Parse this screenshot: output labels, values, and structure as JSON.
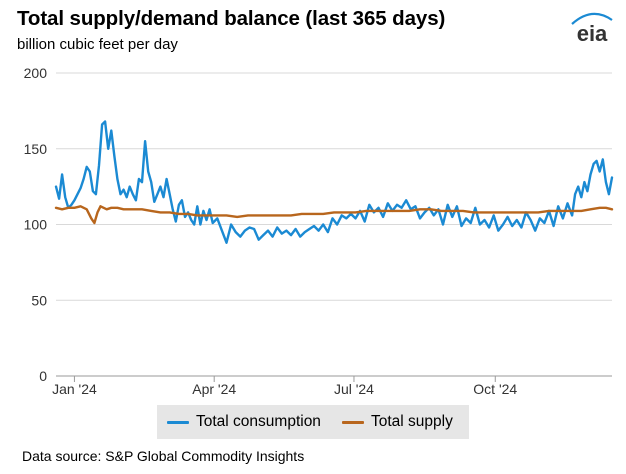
{
  "header": {
    "title": "Total supply/demand balance (last 365 days)",
    "subtitle": "billion cubic feet per day",
    "logo_text": "eia"
  },
  "colors": {
    "consumption": "#1b8ad3",
    "supply": "#b8661d",
    "gridline": "#d9d9d9",
    "legend_bg": "#e6e6e6",
    "logo_arc": "#1b8ad3"
  },
  "chart_data": {
    "type": "line",
    "title": "Total supply/demand balance (last 365 days)",
    "ylabel": "billion cubic feet per day",
    "ylim": [
      0,
      200
    ],
    "yticks": [
      0,
      50,
      100,
      150,
      200
    ],
    "xlim": [
      "2023-12-20",
      "2024-12-16"
    ],
    "xticks": [
      {
        "date": "2024-01-01",
        "label": "Jan '24"
      },
      {
        "date": "2024-04-01",
        "label": "Apr '24"
      },
      {
        "date": "2024-07-01",
        "label": "Jul '24"
      },
      {
        "date": "2024-10-01",
        "label": "Oct '24"
      }
    ],
    "grid": "horizontal",
    "legend": "bottom-center",
    "series": [
      {
        "name": "Total consumption",
        "x": [
          "2023-12-20",
          "2023-12-22",
          "2023-12-24",
          "2023-12-26",
          "2023-12-28",
          "2023-12-30",
          "2024-01-01",
          "2024-01-03",
          "2024-01-05",
          "2024-01-07",
          "2024-01-09",
          "2024-01-11",
          "2024-01-13",
          "2024-01-15",
          "2024-01-17",
          "2024-01-19",
          "2024-01-21",
          "2024-01-23",
          "2024-01-25",
          "2024-01-27",
          "2024-01-29",
          "2024-01-31",
          "2024-02-02",
          "2024-02-04",
          "2024-02-06",
          "2024-02-08",
          "2024-02-10",
          "2024-02-12",
          "2024-02-14",
          "2024-02-16",
          "2024-02-18",
          "2024-02-20",
          "2024-02-22",
          "2024-02-24",
          "2024-02-26",
          "2024-02-28",
          "2024-03-01",
          "2024-03-03",
          "2024-03-05",
          "2024-03-07",
          "2024-03-09",
          "2024-03-11",
          "2024-03-13",
          "2024-03-15",
          "2024-03-17",
          "2024-03-19",
          "2024-03-21",
          "2024-03-23",
          "2024-03-25",
          "2024-03-27",
          "2024-03-29",
          "2024-03-31",
          "2024-04-03",
          "2024-04-06",
          "2024-04-09",
          "2024-04-12",
          "2024-04-15",
          "2024-04-18",
          "2024-04-21",
          "2024-04-24",
          "2024-04-27",
          "2024-04-30",
          "2024-05-03",
          "2024-05-06",
          "2024-05-09",
          "2024-05-12",
          "2024-05-15",
          "2024-05-18",
          "2024-05-21",
          "2024-05-24",
          "2024-05-27",
          "2024-05-30",
          "2024-06-02",
          "2024-06-05",
          "2024-06-08",
          "2024-06-11",
          "2024-06-14",
          "2024-06-17",
          "2024-06-20",
          "2024-06-23",
          "2024-06-26",
          "2024-06-29",
          "2024-07-02",
          "2024-07-05",
          "2024-07-08",
          "2024-07-11",
          "2024-07-14",
          "2024-07-17",
          "2024-07-20",
          "2024-07-23",
          "2024-07-26",
          "2024-07-29",
          "2024-08-01",
          "2024-08-04",
          "2024-08-07",
          "2024-08-10",
          "2024-08-13",
          "2024-08-16",
          "2024-08-19",
          "2024-08-22",
          "2024-08-25",
          "2024-08-28",
          "2024-08-31",
          "2024-09-03",
          "2024-09-06",
          "2024-09-09",
          "2024-09-12",
          "2024-09-15",
          "2024-09-18",
          "2024-09-21",
          "2024-09-24",
          "2024-09-27",
          "2024-09-30",
          "2024-10-03",
          "2024-10-06",
          "2024-10-09",
          "2024-10-12",
          "2024-10-15",
          "2024-10-18",
          "2024-10-21",
          "2024-10-24",
          "2024-10-27",
          "2024-10-30",
          "2024-11-02",
          "2024-11-05",
          "2024-11-08",
          "2024-11-11",
          "2024-11-14",
          "2024-11-17",
          "2024-11-20",
          "2024-11-22",
          "2024-11-24",
          "2024-11-26",
          "2024-11-28",
          "2024-11-30",
          "2024-12-02",
          "2024-12-04",
          "2024-12-06",
          "2024-12-08",
          "2024-12-10",
          "2024-12-12",
          "2024-12-14",
          "2024-12-16"
        ],
        "values": [
          125,
          117,
          133,
          118,
          111,
          113,
          116,
          120,
          124,
          130,
          138,
          135,
          122,
          120,
          139,
          166,
          168,
          150,
          162,
          145,
          130,
          120,
          123,
          118,
          125,
          120,
          116,
          130,
          128,
          155,
          135,
          128,
          115,
          120,
          125,
          118,
          130,
          120,
          110,
          102,
          113,
          116,
          105,
          108,
          103,
          100,
          112,
          100,
          109,
          103,
          110,
          101,
          104,
          96,
          88,
          100,
          95,
          92,
          96,
          98,
          97,
          90,
          93,
          96,
          92,
          98,
          94,
          96,
          93,
          97,
          92,
          95,
          97,
          99,
          96,
          100,
          95,
          104,
          100,
          106,
          104,
          107,
          104,
          109,
          102,
          113,
          108,
          111,
          105,
          114,
          109,
          113,
          111,
          116,
          110,
          112,
          104,
          108,
          111,
          106,
          110,
          100,
          113,
          105,
          112,
          99,
          104,
          101,
          111,
          100,
          103,
          98,
          106,
          96,
          100,
          105,
          99,
          103,
          98,
          108,
          103,
          96,
          104,
          101,
          109,
          99,
          112,
          104,
          114,
          106,
          120,
          125,
          118,
          128,
          122,
          133,
          140,
          142,
          135,
          143,
          128,
          120,
          131
        ]
      },
      {
        "name": "Total supply",
        "x": [
          "2023-12-20",
          "2023-12-24",
          "2023-12-28",
          "2024-01-01",
          "2024-01-05",
          "2024-01-09",
          "2024-01-12",
          "2024-01-14",
          "2024-01-16",
          "2024-01-18",
          "2024-01-20",
          "2024-01-22",
          "2024-01-25",
          "2024-01-29",
          "2024-02-02",
          "2024-02-08",
          "2024-02-14",
          "2024-02-20",
          "2024-02-26",
          "2024-03-03",
          "2024-03-09",
          "2024-03-15",
          "2024-03-21",
          "2024-03-27",
          "2024-04-02",
          "2024-04-09",
          "2024-04-16",
          "2024-04-23",
          "2024-04-30",
          "2024-05-07",
          "2024-05-14",
          "2024-05-21",
          "2024-05-28",
          "2024-06-04",
          "2024-06-11",
          "2024-06-18",
          "2024-06-25",
          "2024-07-02",
          "2024-07-09",
          "2024-07-16",
          "2024-07-23",
          "2024-07-30",
          "2024-08-06",
          "2024-08-13",
          "2024-08-20",
          "2024-08-27",
          "2024-09-03",
          "2024-09-10",
          "2024-09-17",
          "2024-09-24",
          "2024-10-01",
          "2024-10-08",
          "2024-10-15",
          "2024-10-22",
          "2024-10-29",
          "2024-11-05",
          "2024-11-12",
          "2024-11-19",
          "2024-11-26",
          "2024-12-02",
          "2024-12-08",
          "2024-12-12",
          "2024-12-16"
        ],
        "values": [
          111,
          110,
          111,
          111,
          112,
          110,
          104,
          101,
          108,
          112,
          111,
          110,
          111,
          111,
          110,
          110,
          110,
          109,
          108,
          108,
          107,
          107,
          106,
          106,
          106,
          106,
          105,
          106,
          106,
          106,
          106,
          106,
          107,
          107,
          107,
          108,
          108,
          108,
          109,
          109,
          109,
          109,
          109,
          110,
          110,
          109,
          109,
          109,
          108,
          108,
          108,
          108,
          108,
          108,
          108,
          109,
          109,
          109,
          109,
          110,
          111,
          111,
          110
        ]
      }
    ]
  },
  "legend": {
    "items": [
      {
        "label": "Total consumption"
      },
      {
        "label": "Total supply"
      }
    ]
  },
  "footer": {
    "source": "Data source: S&P Global Commodity Insights"
  }
}
